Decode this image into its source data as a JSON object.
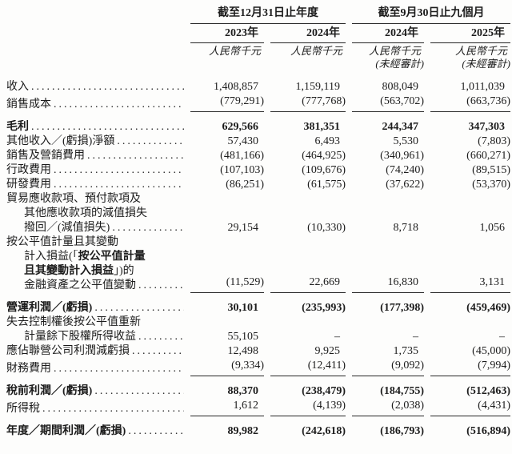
{
  "page": {
    "background": "#fdfdfc",
    "text_color": "#1c1c1c",
    "rule_color": "#262626"
  },
  "header": {
    "period_groups": [
      {
        "title": "截至12月31日止年度"
      },
      {
        "title": "截至9月30日止九個月"
      }
    ],
    "years": [
      "2023年",
      "2024年",
      "2024年",
      "2025年"
    ],
    "currency_unit": "人民幣千元",
    "unaudited_note": "(未經審計)"
  },
  "table": {
    "rows": [
      {
        "type": "data",
        "label_lines": [
          "收入"
        ],
        "values": [
          "1,408,857",
          "1,159,119",
          "808,049",
          "1,011,039"
        ]
      },
      {
        "type": "data",
        "label_lines": [
          "銷售成本"
        ],
        "values": [
          "(779,291)",
          "(777,768)",
          "(563,702)",
          "(663,736)"
        ],
        "rule_below": true
      },
      {
        "type": "spacer"
      },
      {
        "type": "data",
        "bold": true,
        "label_lines": [
          "毛利"
        ],
        "values": [
          "629,566",
          "381,351",
          "244,347",
          "347,303"
        ]
      },
      {
        "type": "data",
        "label_lines": [
          "其他收入／(虧損)淨額"
        ],
        "values": [
          "57,430",
          "6,493",
          "5,530",
          "(7,803)"
        ]
      },
      {
        "type": "data",
        "label_lines": [
          "銷售及營銷費用"
        ],
        "values": [
          "(481,166)",
          "(464,925)",
          "(340,961)",
          "(660,271)"
        ]
      },
      {
        "type": "data",
        "label_lines": [
          "行政費用"
        ],
        "values": [
          "(107,103)",
          "(109,676)",
          "(74,240)",
          "(89,515)"
        ]
      },
      {
        "type": "data",
        "label_lines": [
          "研發費用"
        ],
        "values": [
          "(86,251)",
          "(61,575)",
          "(37,622)",
          "(53,370)"
        ]
      },
      {
        "type": "data",
        "label_lines": [
          "貿易應收款項、預付款項及",
          {
            "indent": true,
            "text": "其他應收款項的減值損失"
          },
          {
            "indent": true,
            "text": "撥回／(減值損失)"
          }
        ],
        "values": [
          "29,154",
          "(10,330)",
          "8,718",
          "1,056"
        ]
      },
      {
        "type": "data",
        "label_lines": [
          "按公平值計量且其變動",
          {
            "indent": true,
            "segments": [
              {
                "t": "計入損益(「"
              },
              {
                "t": "按公平值計量",
                "b": true
              }
            ]
          },
          {
            "indent": true,
            "segments": [
              {
                "t": "且其變動計入損益",
                "b": true
              },
              {
                "t": "」)的"
              }
            ]
          },
          {
            "indent": true,
            "text": "金融資產之公平值變動"
          }
        ],
        "values": [
          "(11,529)",
          "22,669",
          "16,830",
          "3,131"
        ],
        "rule_below": true
      },
      {
        "type": "spacer"
      },
      {
        "type": "data",
        "bold": true,
        "label_lines": [
          "營運利潤／(虧損)"
        ],
        "values": [
          "30,101",
          "(235,993)",
          "(177,398)",
          "(459,469)"
        ]
      },
      {
        "type": "data",
        "label_lines": [
          "失去控制權後按公平值重新",
          {
            "indent": true,
            "text": "計量餘下股權所得收益"
          }
        ],
        "values": [
          "55,105",
          "–",
          "–",
          "–"
        ]
      },
      {
        "type": "data",
        "label_lines": [
          "應佔聯營公司利潤減虧損"
        ],
        "values": [
          "12,498",
          "9,925",
          "1,735",
          "(45,000)"
        ]
      },
      {
        "type": "data",
        "label_lines": [
          "財務費用"
        ],
        "values": [
          "(9,334)",
          "(12,411)",
          "(9,092)",
          "(7,994)"
        ],
        "rule_below": true
      },
      {
        "type": "spacer"
      },
      {
        "type": "data",
        "bold": true,
        "label_lines": [
          "稅前利潤／(虧損)"
        ],
        "values": [
          "88,370",
          "(238,479)",
          "(184,755)",
          "(512,463)"
        ]
      },
      {
        "type": "data",
        "label_lines": [
          "所得稅"
        ],
        "values": [
          "1,612",
          "(4,139)",
          "(2,038)",
          "(4,431)"
        ],
        "rule_below": true
      },
      {
        "type": "spacer"
      },
      {
        "type": "data",
        "bold": true,
        "label_lines": [
          "年度／期間利潤／(虧損)"
        ],
        "values": [
          "89,982",
          "(242,618)",
          "(186,793)",
          "(516,894)"
        ]
      }
    ]
  }
}
